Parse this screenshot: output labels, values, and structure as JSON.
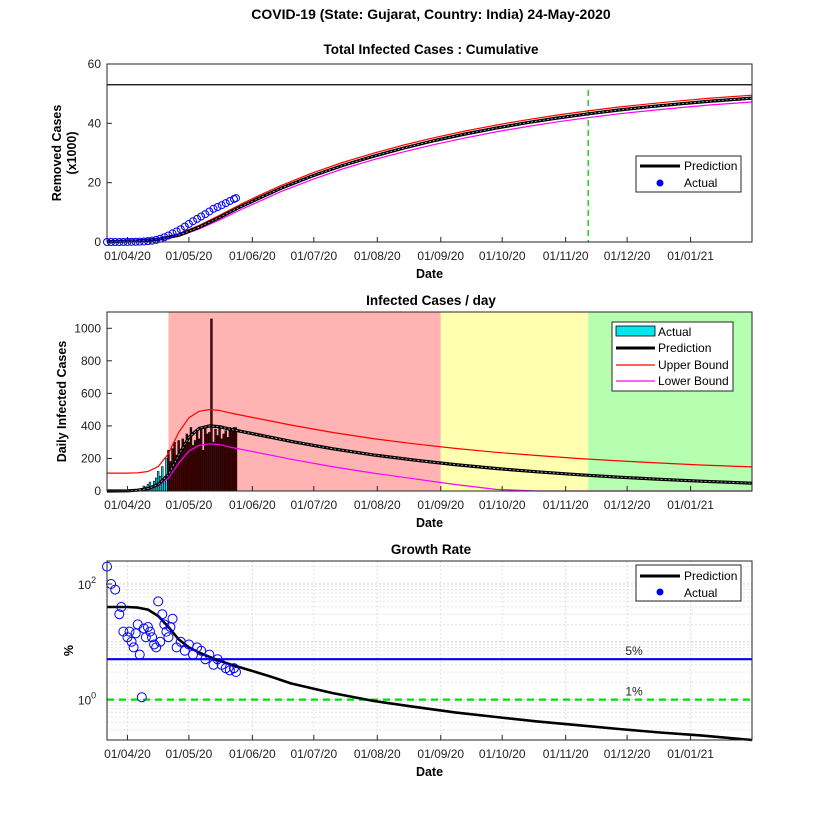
{
  "figure_title": "COVID-19 (State: Gujarat, Country: India) 24-May-2020",
  "x_tick_labels": [
    "01/04/20",
    "01/05/20",
    "01/06/20",
    "01/07/20",
    "01/08/20",
    "01/09/20",
    "01/10/20",
    "01/11/20",
    "01/12/20",
    "01/01/21"
  ],
  "x_axis_label": "Date",
  "colors": {
    "prediction": "#000000",
    "upper": "#ff0000",
    "lower": "#ff00ff",
    "actual": "#0000ff",
    "bar_fill_early": "#00e5ee",
    "bar_fill_late": "#5a0000",
    "zone_red": "#ffb3b3",
    "zone_yellow": "#ffffb0",
    "zone_green": "#b6ffb0",
    "threshold_5": "#0000ff",
    "threshold_1": "#00dd00",
    "vertical_marker": "#00cc00"
  },
  "chart_data": [
    {
      "type": "line",
      "title": "Total Infected Cases : Cumulative",
      "xlabel": "Date",
      "ylabel": [
        "Removed Cases",
        "(x1000)"
      ],
      "ylim": [
        0,
        60
      ],
      "yticks": [
        "0",
        "20",
        "40",
        "60"
      ],
      "xlim_days": [
        -10,
        305
      ],
      "horizontal_line": 53,
      "vertical_marker_day": 225,
      "legend": {
        "position": "right",
        "items": [
          "Prediction",
          "Actual"
        ]
      },
      "series": [
        {
          "name": "Prediction",
          "x": [
            -10,
            5,
            15,
            25,
            35,
            45,
            55,
            65,
            75,
            90,
            105,
            120,
            135,
            150,
            165,
            180,
            195,
            210,
            225,
            240,
            255,
            270,
            285,
            305
          ],
          "y": [
            0.1,
            0.4,
            0.9,
            2.3,
            5.0,
            8.3,
            11.8,
            15.0,
            18.1,
            22.2,
            25.8,
            28.9,
            31.7,
            34.2,
            36.4,
            38.4,
            40.2,
            41.8,
            43.2,
            44.5,
            45.6,
            46.6,
            47.5,
            48.5
          ]
        },
        {
          "name": "Upper Bound",
          "x": [
            -10,
            5,
            15,
            25,
            35,
            45,
            55,
            65,
            75,
            90,
            105,
            120,
            135,
            150,
            165,
            180,
            195,
            210,
            225,
            240,
            255,
            270,
            285,
            305
          ],
          "y": [
            0.2,
            0.6,
            1.2,
            2.8,
            5.6,
            9.0,
            12.6,
            15.9,
            19.0,
            23.2,
            26.8,
            29.9,
            32.7,
            35.2,
            37.4,
            39.4,
            41.2,
            42.8,
            44.2,
            45.5,
            46.6,
            47.6,
            48.5,
            49.5
          ]
        },
        {
          "name": "Lower Bound",
          "x": [
            -10,
            5,
            15,
            25,
            35,
            45,
            55,
            65,
            75,
            90,
            105,
            120,
            135,
            150,
            165,
            180,
            195,
            210,
            225,
            240,
            255,
            270,
            285,
            305
          ],
          "y": [
            0.05,
            0.3,
            0.7,
            1.9,
            4.4,
            7.4,
            10.8,
            13.9,
            17.0,
            21.0,
            24.6,
            27.7,
            30.4,
            32.9,
            35.1,
            37.1,
            38.9,
            40.5,
            41.9,
            43.2,
            44.3,
            45.3,
            46.2,
            47.2
          ]
        },
        {
          "name": "Actual",
          "x": [
            -10,
            -8,
            -6,
            -4,
            -2,
            0,
            2,
            4,
            6,
            8,
            10,
            12,
            14,
            16,
            18,
            20,
            22,
            24,
            26,
            28,
            30,
            32,
            34,
            36,
            38,
            40,
            42,
            44,
            46,
            48,
            50,
            52,
            53
          ],
          "y": [
            0.0,
            0.0,
            0.0,
            0.01,
            0.02,
            0.03,
            0.05,
            0.08,
            0.12,
            0.18,
            0.3,
            0.45,
            0.7,
            1.1,
            1.6,
            2.2,
            2.9,
            3.6,
            4.3,
            5.2,
            6.1,
            7.0,
            7.8,
            8.6,
            9.4,
            10.3,
            11.2,
            11.8,
            12.4,
            13.1,
            13.8,
            14.5,
            14.8
          ]
        }
      ]
    },
    {
      "type": "bar",
      "title": "Infected Cases / day",
      "xlabel": "Date",
      "ylabel": "Daily Infected Cases",
      "ylim": [
        0,
        1100
      ],
      "yticks": [
        "0",
        "200",
        "400",
        "600",
        "800",
        "1000"
      ],
      "xlim_days": [
        -10,
        305
      ],
      "zones": [
        {
          "color": "red",
          "from_day": 20,
          "to_day": 153
        },
        {
          "color": "yellow",
          "from_day": 153,
          "to_day": 225
        },
        {
          "color": "green",
          "from_day": 225,
          "to_day": 305
        }
      ],
      "legend": {
        "position": "top-right",
        "items": [
          "Actual",
          "Prediction",
          "Upper Bound",
          "Lower Bound"
        ]
      },
      "bars": {
        "name": "Actual",
        "x": [
          6,
          7,
          8,
          9,
          10,
          11,
          12,
          13,
          14,
          15,
          16,
          17,
          18,
          19,
          20,
          21,
          22,
          23,
          24,
          25,
          26,
          27,
          28,
          29,
          30,
          31,
          32,
          33,
          34,
          35,
          36,
          37,
          38,
          39,
          40,
          41,
          42,
          43,
          44,
          45,
          46,
          47,
          48,
          49,
          50,
          51,
          52,
          53
        ],
        "y": [
          10,
          15,
          30,
          25,
          40,
          55,
          20,
          60,
          80,
          120,
          90,
          150,
          80,
          200,
          250,
          180,
          260,
          300,
          220,
          310,
          250,
          320,
          280,
          350,
          300,
          390,
          280,
          310,
          370,
          320,
          380,
          250,
          400,
          350,
          360,
          1057,
          300,
          380,
          340,
          390,
          320,
          350,
          370,
          330,
          390,
          380,
          390,
          390
        ]
      },
      "series": [
        {
          "name": "Prediction",
          "x": [
            -10,
            0,
            5,
            10,
            15,
            20,
            25,
            30,
            35,
            40,
            45,
            50,
            60,
            70,
            80,
            100,
            120,
            140,
            160,
            180,
            200,
            220,
            240,
            260,
            280,
            305
          ],
          "y": [
            0,
            1,
            5,
            15,
            40,
            100,
            220,
            330,
            385,
            400,
            395,
            380,
            355,
            330,
            305,
            260,
            222,
            190,
            162,
            138,
            118,
            100,
            85,
            72,
            60,
            48
          ]
        },
        {
          "name": "Upper Bound",
          "x": [
            -10,
            0,
            5,
            10,
            15,
            20,
            25,
            30,
            35,
            40,
            45,
            50,
            60,
            70,
            80,
            100,
            120,
            140,
            160,
            180,
            200,
            220,
            240,
            260,
            280,
            305
          ],
          "y": [
            110,
            110,
            112,
            120,
            150,
            230,
            360,
            450,
            490,
            500,
            495,
            480,
            455,
            430,
            405,
            360,
            322,
            290,
            262,
            238,
            218,
            200,
            185,
            172,
            160,
            148
          ]
        },
        {
          "name": "Lower Bound",
          "x": [
            -10,
            0,
            5,
            10,
            15,
            20,
            25,
            30,
            35,
            40,
            45,
            50,
            60,
            70,
            80,
            100,
            120,
            140,
            160,
            180,
            200,
            220,
            240,
            260,
            280,
            305
          ],
          "y": [
            0,
            0.5,
            3,
            10,
            30,
            80,
            170,
            245,
            280,
            290,
            285,
            270,
            245,
            220,
            195,
            150,
            110,
            75,
            40,
            10,
            0,
            0,
            0,
            0,
            0,
            0
          ]
        }
      ]
    },
    {
      "type": "scatter",
      "title": "Growth Rate",
      "xlabel": "Date",
      "ylabel": "%",
      "yscale": "log",
      "ylim": [
        0.2,
        250
      ],
      "ytick_labels": [
        {
          "base": "10",
          "exp": "2",
          "value": 100
        },
        {
          "base": "10",
          "exp": "0",
          "value": 1
        }
      ],
      "xlim_days": [
        -10,
        305
      ],
      "grid": "on",
      "legend": {
        "position": "top-right",
        "items": [
          "Prediction",
          "Actual"
        ]
      },
      "thresholds": [
        {
          "label": "5%",
          "value": 5,
          "style": "solid"
        },
        {
          "label": "1%",
          "value": 1,
          "style": "dashed"
        }
      ],
      "series": [
        {
          "name": "Prediction",
          "x": [
            -10,
            0,
            5,
            10,
            15,
            20,
            25,
            30,
            35,
            40,
            45,
            50,
            60,
            70,
            80,
            100,
            120,
            140,
            160,
            180,
            200,
            220,
            240,
            260,
            280,
            305
          ],
          "y": [
            40,
            40,
            39,
            36,
            28,
            18,
            11,
            8,
            6.5,
            5.5,
            4.7,
            4.1,
            3.2,
            2.5,
            1.9,
            1.3,
            0.95,
            0.75,
            0.6,
            0.5,
            0.42,
            0.36,
            0.31,
            0.27,
            0.24,
            0.2
          ]
        },
        {
          "name": "Actual",
          "x": [
            -10,
            -8,
            -6,
            -4,
            -3,
            -2,
            0,
            1,
            2,
            3,
            4,
            5,
            6,
            7,
            8,
            9,
            10,
            11,
            12,
            13,
            14,
            15,
            16,
            17,
            18,
            19,
            20,
            21,
            22,
            24,
            26,
            28,
            30,
            32,
            34,
            36,
            38,
            40,
            42,
            44,
            46,
            48,
            50,
            52,
            53
          ],
          "y": [
            200,
            100,
            80,
            30,
            40,
            15,
            12,
            15,
            10,
            8,
            14,
            20,
            6,
            1.1,
            17,
            12,
            18,
            15,
            12,
            9,
            8,
            50,
            10,
            30,
            20,
            15,
            12,
            18,
            25,
            8,
            10,
            7,
            9,
            6,
            8,
            7,
            5,
            6,
            4,
            5,
            4,
            3.5,
            3.2,
            3.5,
            3.0
          ]
        }
      ]
    }
  ]
}
